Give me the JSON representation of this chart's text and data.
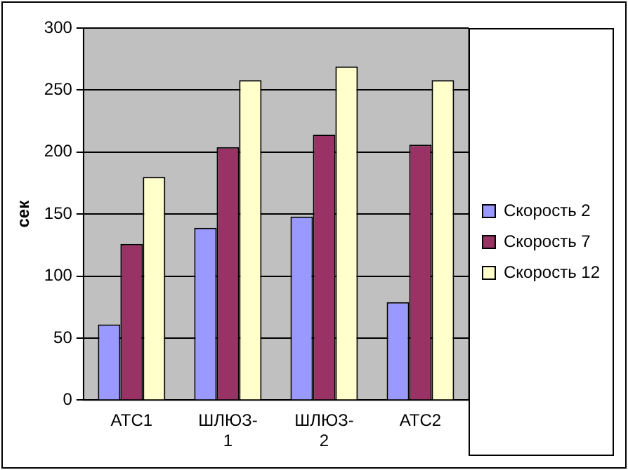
{
  "chart_data": {
    "type": "bar",
    "ylabel": "сек",
    "categories": [
      "АТС1",
      "ШЛЮЗ-1",
      "ШЛЮЗ-2",
      "АТС2"
    ],
    "series": [
      {
        "name": "Скорость 2",
        "color": "#9999ff",
        "values": [
          61,
          139,
          148,
          79
        ]
      },
      {
        "name": "Скорость 7",
        "color": "#993366",
        "values": [
          126,
          204,
          214,
          206
        ]
      },
      {
        "name": "Скорость 12",
        "color": "#ffffcc",
        "values": [
          180,
          258,
          269,
          258
        ]
      }
    ],
    "ylim": [
      0,
      300
    ],
    "yticks": [
      0,
      50,
      100,
      150,
      200,
      250,
      300
    ],
    "grid": "y",
    "legend": "right"
  }
}
